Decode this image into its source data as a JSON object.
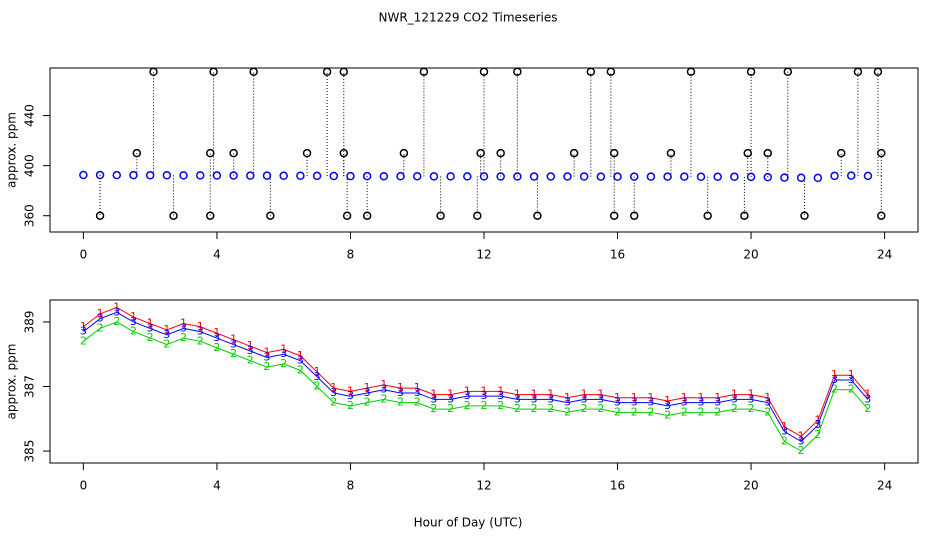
{
  "chart_data": [
    {
      "type": "scatter",
      "title": "NWR_121229  CO2 Timeseries",
      "ylabel": "approx. ppm",
      "xlim": [
        -1,
        25
      ],
      "xticks": [
        0,
        4,
        8,
        12,
        16,
        20,
        24
      ],
      "ylim": [
        347,
        478
      ],
      "yticks": [
        360,
        400,
        440
      ],
      "series": [
        {
          "color": "#0000ff",
          "drop_lines": false,
          "x": [
            0,
            0.5,
            1,
            1.5,
            2,
            2.5,
            3,
            3.5,
            4,
            4.5,
            5,
            5.5,
            6,
            6.5,
            7,
            7.5,
            8,
            8.5,
            9,
            9.5,
            10,
            10.5,
            11,
            11.5,
            12,
            12.5,
            13,
            13.5,
            14,
            14.5,
            15,
            15.5,
            16,
            16.5,
            17,
            17.5,
            18,
            18.5,
            19,
            19.5,
            20,
            20.5,
            21,
            21.5,
            22,
            22.5,
            23,
            23.5
          ],
          "values": [
            392.5,
            392.5,
            392.4,
            392.4,
            392.3,
            392.3,
            392.2,
            392.2,
            392.1,
            392.1,
            392.0,
            392.0,
            391.9,
            391.9,
            391.8,
            391.7,
            391.6,
            391.6,
            391.5,
            391.5,
            391.5,
            391.4,
            391.4,
            391.4,
            391.4,
            391.3,
            391.3,
            391.3,
            391.3,
            391.3,
            391.3,
            391.2,
            391.2,
            391.2,
            391.2,
            391.2,
            391.2,
            391.1,
            391.1,
            391.1,
            391.0,
            390.8,
            390.4,
            390.3,
            390.2,
            391.8,
            392.0,
            391.8
          ]
        },
        {
          "color": "#000000",
          "drop_lines": true,
          "x": [
            0.5,
            1.6,
            2.1,
            2.7,
            3.8,
            3.8,
            3.9,
            4.5,
            5.1,
            5.6,
            6.7,
            7.3,
            7.8,
            7.8,
            7.9,
            8.5,
            9.6,
            10.2,
            10.7,
            11.8,
            11.9,
            12.0,
            12.5,
            13.0,
            13.6,
            14.7,
            15.2,
            15.8,
            15.9,
            15.9,
            16.5,
            17.6,
            18.2,
            18.7,
            19.8,
            19.9,
            20.0,
            20.5,
            21.1,
            21.6,
            22.7,
            23.2,
            23.8,
            23.9,
            23.9
          ],
          "values": [
            360,
            410,
            475,
            360,
            360,
            410,
            475,
            410,
            475,
            360,
            410,
            475,
            475,
            410,
            360,
            360,
            410,
            475,
            360,
            360,
            410,
            475,
            410,
            475,
            360,
            410,
            475,
            475,
            410,
            360,
            360,
            410,
            475,
            360,
            360,
            410,
            475,
            410,
            475,
            360,
            410,
            475,
            475,
            410,
            360
          ]
        }
      ]
    },
    {
      "type": "line",
      "ylabel": "approx. ppm",
      "xlabel": "Hour of Day (UTC)",
      "xlim": [
        -1,
        25
      ],
      "xticks": [
        0,
        4,
        8,
        12,
        16,
        20,
        24
      ],
      "ylim": [
        384.63,
        389.68
      ],
      "yticks": [
        385,
        387,
        389
      ],
      "x": [
        0,
        0.5,
        1,
        1.5,
        2,
        2.5,
        3,
        3.5,
        4,
        4.5,
        5,
        5.5,
        6,
        6.5,
        7,
        7.5,
        8,
        8.5,
        9,
        9.5,
        10,
        10.5,
        11,
        11.5,
        12,
        12.5,
        13,
        13.5,
        14,
        14.5,
        15,
        15.5,
        16,
        16.5,
        17,
        17.5,
        18,
        18.5,
        19,
        19.5,
        20,
        20.5,
        21,
        21.5,
        22,
        22.5,
        23,
        23.5
      ],
      "series": [
        {
          "marker": "1",
          "color": "#ff0000",
          "values": [
            388.85,
            389.25,
            389.45,
            389.15,
            388.95,
            388.75,
            388.95,
            388.85,
            388.65,
            388.45,
            388.25,
            388.05,
            388.15,
            387.95,
            387.45,
            386.95,
            386.85,
            386.95,
            387.05,
            386.95,
            386.95,
            386.75,
            386.75,
            386.85,
            386.85,
            386.85,
            386.75,
            386.75,
            386.75,
            386.65,
            386.75,
            386.75,
            386.65,
            386.65,
            386.65,
            386.55,
            386.65,
            386.65,
            386.65,
            386.75,
            386.75,
            386.65,
            385.75,
            385.45,
            385.95,
            387.35,
            387.35,
            386.75
          ]
        },
        {
          "marker": "2",
          "color": "#00cc00",
          "values": [
            388.4,
            388.8,
            389.0,
            388.7,
            388.5,
            388.3,
            388.5,
            388.4,
            388.2,
            388.0,
            387.8,
            387.6,
            387.7,
            387.5,
            387.0,
            386.5,
            386.4,
            386.5,
            386.6,
            386.5,
            386.5,
            386.3,
            386.3,
            386.4,
            386.4,
            386.4,
            386.3,
            386.3,
            386.3,
            386.2,
            386.3,
            386.3,
            386.2,
            386.2,
            386.2,
            386.1,
            386.2,
            386.2,
            386.2,
            386.3,
            386.3,
            386.2,
            385.3,
            385.0,
            385.5,
            386.9,
            386.9,
            386.3
          ]
        },
        {
          "marker": "3",
          "color": "#0000ff",
          "values": [
            388.7,
            389.1,
            389.3,
            389.0,
            388.8,
            388.6,
            388.8,
            388.7,
            388.5,
            388.3,
            388.1,
            387.9,
            388.0,
            387.8,
            387.3,
            386.8,
            386.7,
            386.8,
            386.9,
            386.8,
            386.8,
            386.6,
            386.6,
            386.7,
            386.7,
            386.7,
            386.6,
            386.6,
            386.6,
            386.5,
            386.6,
            386.6,
            386.5,
            386.5,
            386.5,
            386.4,
            386.5,
            386.5,
            386.5,
            386.6,
            386.6,
            386.5,
            385.6,
            385.3,
            385.8,
            387.2,
            387.2,
            386.6
          ]
        }
      ]
    }
  ]
}
